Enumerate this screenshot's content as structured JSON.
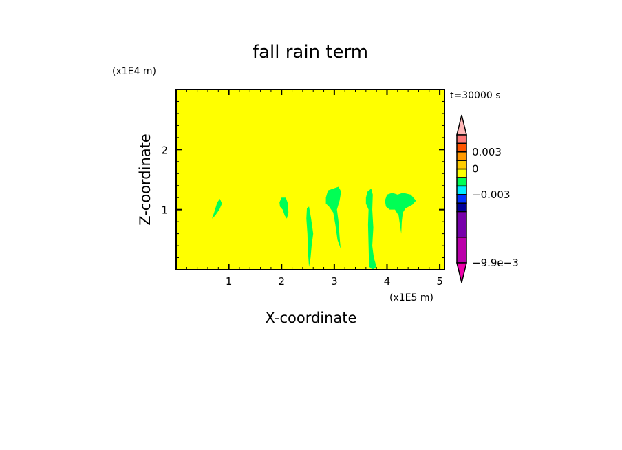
{
  "chart_data": {
    "type": "heatmap",
    "title": "fall rain term",
    "xlabel": "X-coordinate",
    "ylabel": "Z-coordinate",
    "x_unit": "(x1E5 m)",
    "y_unit": "(x1E4 m)",
    "time_label": "t=30000 s",
    "xlim": [
      0,
      5.09
    ],
    "ylim": [
      0,
      3.0
    ],
    "xticks": [
      1,
      2,
      3,
      4,
      5
    ],
    "yticks": [
      1,
      2
    ],
    "background_level_color": "#ffff00",
    "regions": [
      {
        "color": "#00ff55",
        "points": [
          [
            0.68,
            0.85
          ],
          [
            0.72,
            0.95
          ],
          [
            0.78,
            1.12
          ],
          [
            0.83,
            1.18
          ],
          [
            0.87,
            1.1
          ],
          [
            0.82,
            1.0
          ],
          [
            0.74,
            0.9
          ]
        ]
      },
      {
        "color": "#00ff55",
        "points": [
          [
            1.96,
            1.12
          ],
          [
            2.0,
            1.2
          ],
          [
            2.08,
            1.2
          ],
          [
            2.12,
            1.1
          ],
          [
            2.13,
            0.95
          ],
          [
            2.1,
            0.85
          ],
          [
            2.06,
            0.9
          ],
          [
            2.02,
            1.0
          ],
          [
            1.97,
            1.05
          ]
        ]
      },
      {
        "color": "#00ff55",
        "points": [
          [
            2.48,
            1.02
          ],
          [
            2.52,
            1.05
          ],
          [
            2.56,
            0.85
          ],
          [
            2.6,
            0.6
          ],
          [
            2.57,
            0.4
          ],
          [
            2.55,
            0.2
          ],
          [
            2.52,
            0.05
          ],
          [
            2.5,
            0.3
          ],
          [
            2.49,
            0.6
          ],
          [
            2.47,
            0.85
          ]
        ]
      },
      {
        "color": "#00ff55",
        "points": [
          [
            2.84,
            1.2
          ],
          [
            2.88,
            1.32
          ],
          [
            2.98,
            1.35
          ],
          [
            3.08,
            1.38
          ],
          [
            3.13,
            1.3
          ],
          [
            3.1,
            1.15
          ],
          [
            3.05,
            1.0
          ],
          [
            3.08,
            0.8
          ],
          [
            3.1,
            0.55
          ],
          [
            3.12,
            0.35
          ],
          [
            3.06,
            0.5
          ],
          [
            3.02,
            0.75
          ],
          [
            2.98,
            0.95
          ],
          [
            2.9,
            1.05
          ],
          [
            2.84,
            1.1
          ]
        ]
      },
      {
        "color": "#00ff55",
        "points": [
          [
            3.6,
            1.2
          ],
          [
            3.63,
            1.3
          ],
          [
            3.7,
            1.35
          ],
          [
            3.73,
            1.25
          ],
          [
            3.72,
            1.0
          ],
          [
            3.74,
            0.7
          ],
          [
            3.72,
            0.4
          ],
          [
            3.75,
            0.2
          ],
          [
            3.8,
            0.05
          ],
          [
            3.73,
            0.0
          ],
          [
            3.66,
            0.05
          ],
          [
            3.65,
            0.4
          ],
          [
            3.64,
            0.75
          ],
          [
            3.65,
            1.0
          ],
          [
            3.6,
            1.1
          ]
        ]
      },
      {
        "color": "#00ff55",
        "points": [
          [
            3.96,
            1.15
          ],
          [
            4.0,
            1.25
          ],
          [
            4.1,
            1.28
          ],
          [
            4.2,
            1.25
          ],
          [
            4.3,
            1.28
          ],
          [
            4.45,
            1.25
          ],
          [
            4.55,
            1.15
          ],
          [
            4.48,
            1.08
          ],
          [
            4.35,
            1.02
          ],
          [
            4.3,
            0.95
          ],
          [
            4.28,
            0.8
          ],
          [
            4.27,
            0.6
          ],
          [
            4.22,
            0.9
          ],
          [
            4.15,
            1.0
          ],
          [
            4.05,
            1.0
          ],
          [
            3.98,
            1.05
          ]
        ]
      }
    ],
    "colorbar": {
      "levels": [
        {
          "color": "#ffb6b6",
          "type": "over"
        },
        {
          "color": "#ff7777"
        },
        {
          "color": "#ff5500"
        },
        {
          "color": "#ff9900"
        },
        {
          "color": "#ffcc00"
        },
        {
          "color": "#ffff00"
        },
        {
          "color": "#00ff55"
        },
        {
          "color": "#00eeff"
        },
        {
          "color": "#0033ff"
        },
        {
          "color": "#000099"
        },
        {
          "color": "#7700aa",
          "span": 3
        },
        {
          "color": "#bb00aa",
          "span": 3
        },
        {
          "color": "#ee00aa",
          "type": "under"
        }
      ],
      "tick_labels": [
        {
          "label": "0.003",
          "boundary": 3
        },
        {
          "label": "0",
          "boundary": 5
        },
        {
          "label": "−0.003",
          "boundary": 8
        },
        {
          "label": "−9.9e−3",
          "boundary": 15
        }
      ]
    }
  }
}
